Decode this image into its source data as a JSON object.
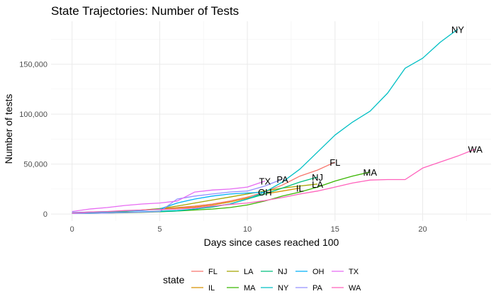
{
  "chart_data": {
    "type": "line",
    "title": "State Trajectories: Number of Tests",
    "xlabel": "Days since cases reached 100",
    "ylabel": "Number of tests",
    "xlim": [
      -1.2,
      23.9
    ],
    "ylim": [
      -7000,
      193000
    ],
    "x_ticks": [
      0,
      5,
      10,
      15,
      20
    ],
    "x_tick_labels": [
      "0",
      "5",
      "10",
      "15",
      "20"
    ],
    "y_ticks": [
      0,
      50000,
      100000,
      150000
    ],
    "y_tick_labels": [
      "0",
      "50,000",
      "100,000",
      "150,000"
    ],
    "grid": true,
    "legend_position": "bottom",
    "legend_title": "state",
    "series": [
      {
        "name": "FL",
        "color": "#F8766D",
        "label": "FL",
        "x": [
          0,
          1,
          2,
          3,
          4,
          5,
          6,
          7,
          8,
          9,
          10,
          11,
          12,
          13,
          14,
          15
        ],
        "y": [
          1000,
          1500,
          2200,
          3000,
          4000,
          5200,
          6500,
          8000,
          10000,
          13000,
          17000,
          22000,
          29000,
          38000,
          44000,
          52000
        ]
      },
      {
        "name": "IL",
        "color": "#D89000",
        "label": "IL",
        "x": [
          0,
          1,
          2,
          3,
          4,
          5,
          6,
          7,
          8,
          9,
          10,
          11,
          12,
          13
        ],
        "y": [
          1000,
          1500,
          2200,
          3000,
          4000,
          5000,
          6000,
          7000,
          9000,
          12000,
          16000,
          20000,
          23000,
          26000
        ]
      },
      {
        "name": "LA",
        "color": "#A3A500",
        "label": "LA",
        "x": [
          0,
          1,
          2,
          3,
          4,
          5,
          6,
          7,
          8,
          9,
          10,
          11,
          12,
          13,
          14
        ],
        "y": [
          500,
          800,
          1500,
          2500,
          4000,
          5500,
          8000,
          11000,
          14000,
          17000,
          20000,
          23000,
          26000,
          28000,
          30000
        ]
      },
      {
        "name": "MA",
        "color": "#39B600",
        "label": "MA",
        "x": [
          0,
          1,
          2,
          3,
          4,
          5,
          6,
          7,
          8,
          9,
          10,
          11,
          12,
          13,
          14,
          15,
          16,
          17
        ],
        "y": [
          500,
          700,
          1000,
          1300,
          1700,
          2200,
          3000,
          4000,
          5000,
          6500,
          9000,
          13000,
          18000,
          22000,
          27000,
          33000,
          38000,
          42000
        ]
      },
      {
        "name": "NJ",
        "color": "#00BF7D",
        "label": "NJ",
        "x": [
          0,
          1,
          2,
          3,
          4,
          5,
          6,
          7,
          8,
          9,
          10,
          11,
          12,
          13,
          14
        ],
        "y": [
          500,
          700,
          1000,
          1500,
          2000,
          2500,
          3000,
          5000,
          7000,
          10000,
          15000,
          20000,
          26000,
          32000,
          37000
        ]
      },
      {
        "name": "NY",
        "color": "#00BFC4",
        "label": "NY",
        "x": [
          0,
          1,
          2,
          3,
          4,
          5,
          6,
          7,
          8,
          9,
          10,
          11,
          12,
          13,
          14,
          15,
          16,
          17,
          18,
          19,
          20,
          21,
          22
        ],
        "y": [
          1000,
          1200,
          1500,
          1800,
          2200,
          2800,
          3500,
          5000,
          7500,
          10000,
          15000,
          22000,
          32000,
          45000,
          62000,
          79000,
          92000,
          103000,
          121000,
          146000,
          156000,
          172000,
          185000
        ]
      },
      {
        "name": "OH",
        "color": "#00B0F6",
        "label": "OH",
        "x": [
          0,
          1,
          2,
          3,
          4,
          5,
          6,
          7,
          8,
          9,
          10,
          11
        ],
        "y": [
          1500,
          2000,
          2500,
          3000,
          3500,
          5000,
          11000,
          15000,
          18000,
          20000,
          21000,
          22000
        ]
      },
      {
        "name": "PA",
        "color": "#9590FF",
        "label": "PA",
        "x": [
          0,
          1,
          2,
          3,
          4,
          5,
          6,
          7,
          8,
          9,
          10,
          11,
          12
        ],
        "y": [
          500,
          700,
          1000,
          1500,
          2000,
          2500,
          15000,
          18000,
          20000,
          22000,
          23000,
          28000,
          35000
        ]
      },
      {
        "name": "TX",
        "color": "#E76BF3",
        "label": "TX",
        "x": [
          0,
          1,
          2,
          3,
          4,
          5,
          6,
          7,
          8,
          9,
          10,
          11
        ],
        "y": [
          2500,
          5000,
          6500,
          8500,
          10000,
          11000,
          13000,
          22000,
          24000,
          25000,
          27000,
          33000
        ]
      },
      {
        "name": "WA",
        "color": "#FF62BC",
        "label": "WA",
        "x": [
          0,
          1,
          2,
          3,
          4,
          5,
          6,
          7,
          8,
          9,
          10,
          11,
          12,
          13,
          14,
          15,
          16,
          17,
          18,
          19,
          20,
          21,
          22,
          23
        ],
        "y": [
          1000,
          2000,
          2500,
          3500,
          4000,
          4500,
          5000,
          6000,
          8000,
          9500,
          11000,
          13500,
          16500,
          20000,
          23000,
          27000,
          31000,
          34000,
          34500,
          34500,
          46000,
          52000,
          58000,
          65000
        ]
      }
    ]
  }
}
